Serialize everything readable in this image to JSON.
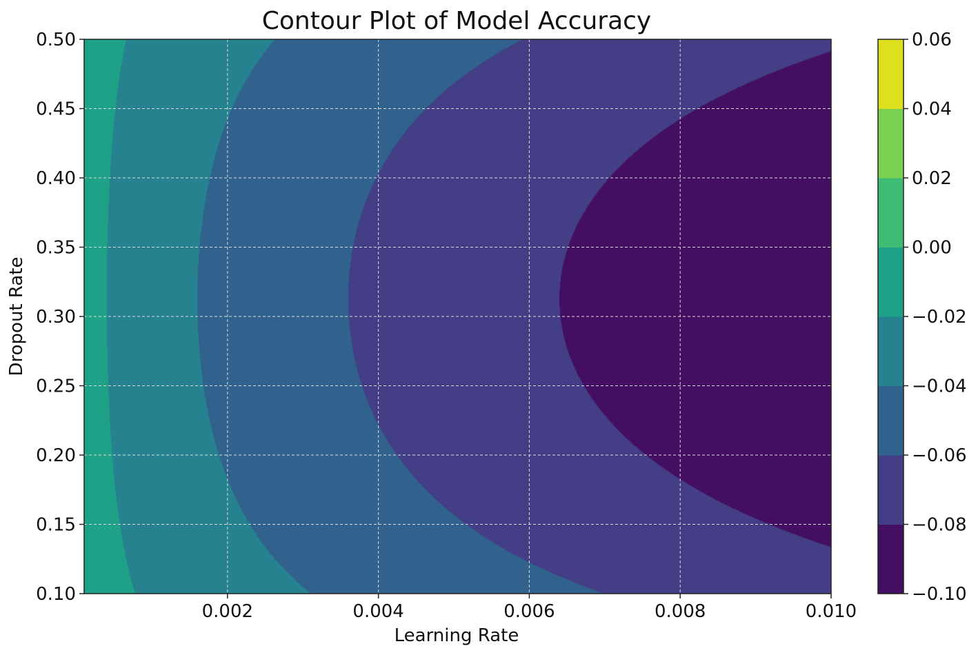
{
  "chart_data": {
    "type": "contour",
    "title": "Contour Plot of Model Accuracy",
    "xlabel": "Learning Rate",
    "ylabel": "Dropout Rate",
    "xlim": [
      0.0001,
      0.01
    ],
    "ylim": [
      0.1,
      0.5
    ],
    "x_ticks": [
      0.002,
      0.004,
      0.006,
      0.008,
      0.01
    ],
    "x_tick_labels": [
      "0.002",
      "0.004",
      "0.006",
      "0.008",
      "0.010"
    ],
    "y_ticks": [
      0.1,
      0.15,
      0.2,
      0.25,
      0.3,
      0.35,
      0.4,
      0.45,
      0.5
    ],
    "y_tick_labels": [
      "0.10",
      "0.15",
      "0.20",
      "0.25",
      "0.30",
      "0.35",
      "0.40",
      "0.45",
      "0.50"
    ],
    "grid": true,
    "surface": {
      "center_dropout": 0.3125,
      "x_scale": 0.01,
      "x_power": 0.5,
      "amplitude": 0.1,
      "dropout_coefficient": 6.25
    },
    "levels": [
      -0.1,
      -0.08,
      -0.06,
      -0.04,
      -0.02,
      0.0,
      0.02,
      0.04,
      0.06
    ],
    "colors": [
      "#440f63",
      "#433e85",
      "#30628d",
      "#25828e",
      "#1fa188",
      "#3fbc73",
      "#7ad151",
      "#dee01f"
    ],
    "colorbar": {
      "tick_values": [
        -0.1,
        -0.08,
        -0.06,
        -0.04,
        -0.02,
        0.0,
        0.02,
        0.04,
        0.06
      ],
      "tick_labels": [
        "−0.10",
        "−0.08",
        "−0.06",
        "−0.04",
        "−0.02",
        "0.00",
        "0.02",
        "0.04",
        "0.06"
      ]
    }
  }
}
